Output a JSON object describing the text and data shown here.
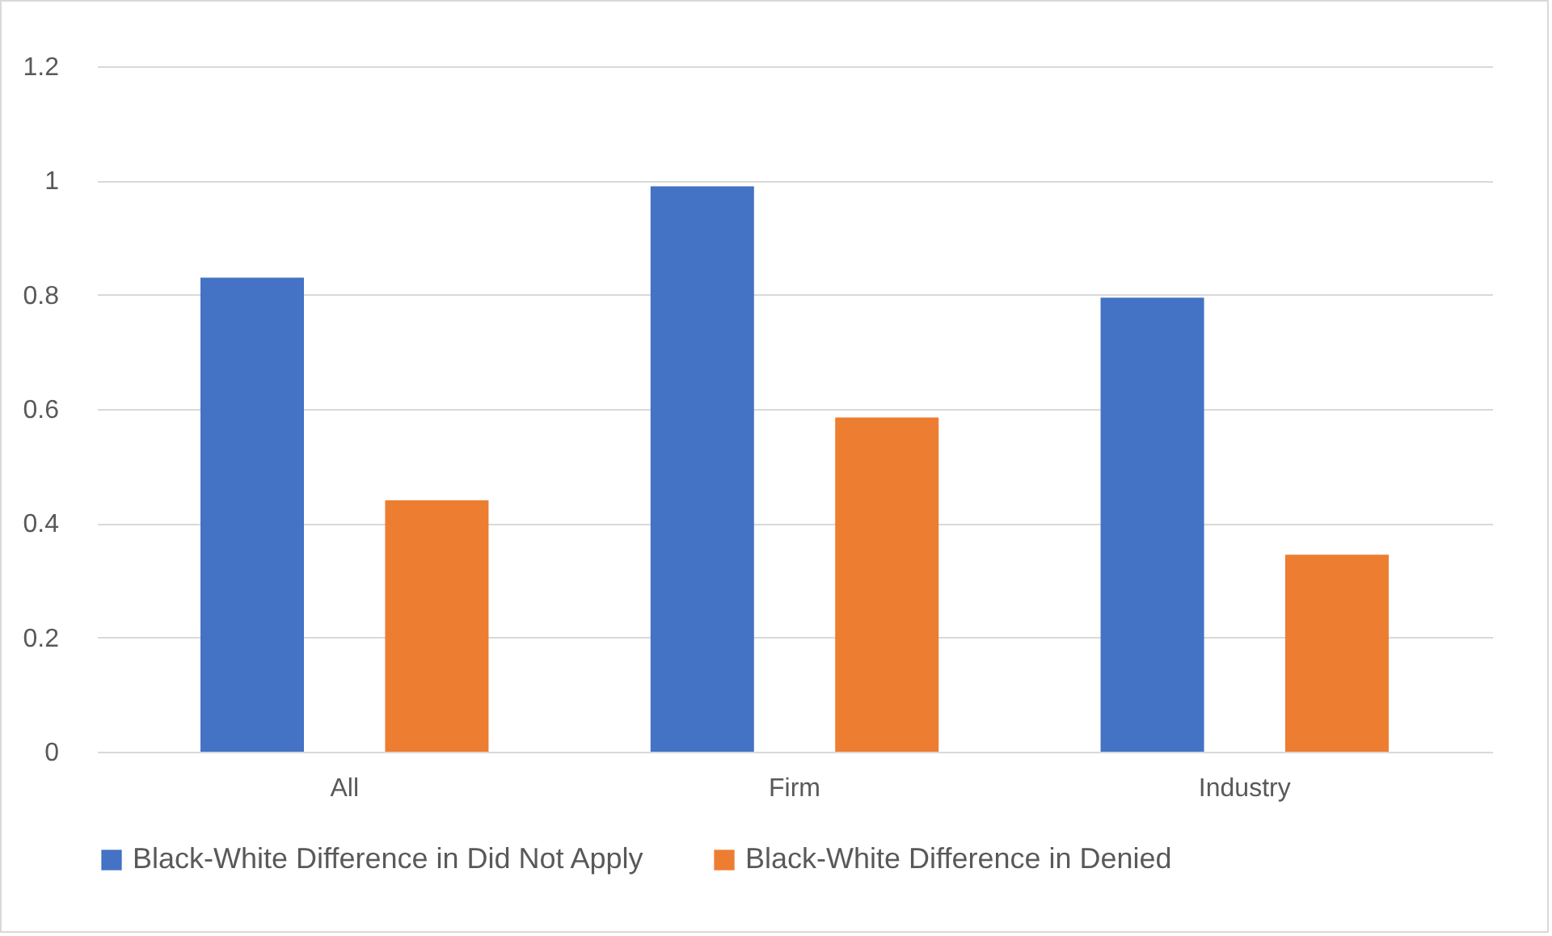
{
  "chart_data": {
    "type": "bar",
    "categories": [
      "All",
      "Firm",
      "Industry"
    ],
    "series": [
      {
        "name": "Black-White Difference in Did Not Apply",
        "color": "#4472c4",
        "values": [
          0.83,
          0.99,
          0.795
        ]
      },
      {
        "name": "Black-White Difference in Denied",
        "color": "#ed7d31",
        "values": [
          0.44,
          0.585,
          0.345
        ]
      }
    ],
    "ylim": [
      0,
      1.2
    ],
    "yticks": [
      0,
      0.2,
      0.4,
      0.6,
      0.8,
      1,
      1.2
    ],
    "grid": "y",
    "legend": "bottom"
  }
}
